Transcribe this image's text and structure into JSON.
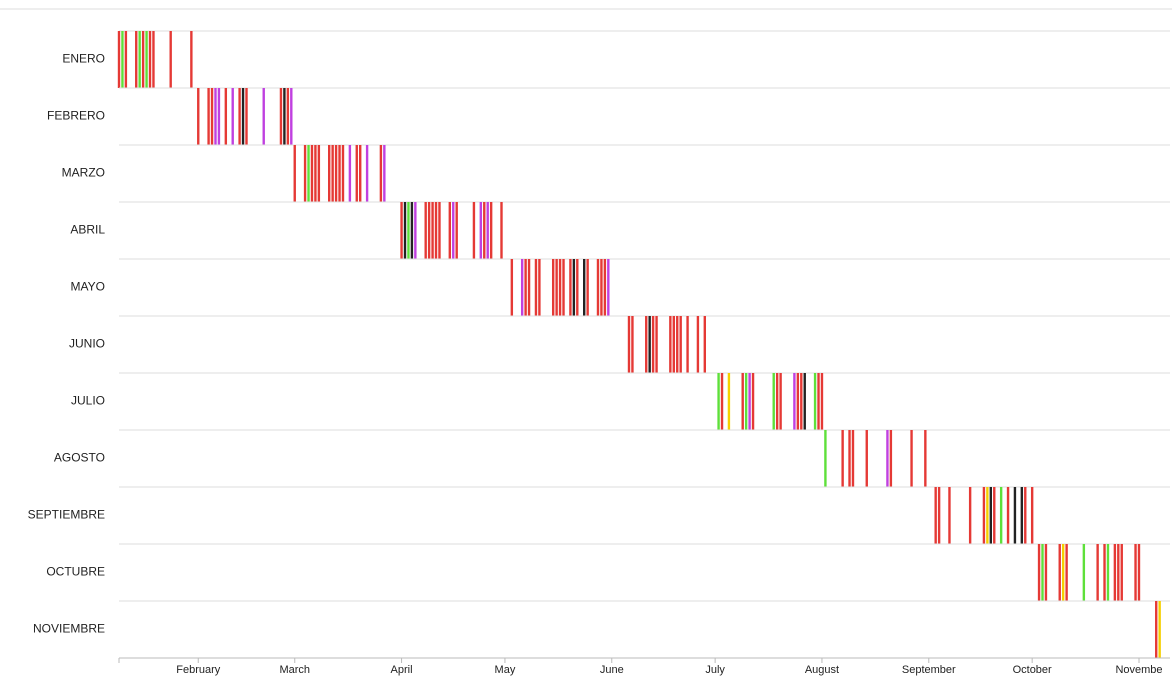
{
  "chart_data": {
    "type": "timeline",
    "xlim": [
      9,
      314
    ],
    "xticks": [
      {
        "value": 32,
        "label": "February"
      },
      {
        "value": 60,
        "label": "March"
      },
      {
        "value": 91,
        "label": "April"
      },
      {
        "value": 121,
        "label": "May"
      },
      {
        "value": 152,
        "label": "June"
      },
      {
        "value": 182,
        "label": "July"
      },
      {
        "value": 213,
        "label": "August"
      },
      {
        "value": 244,
        "label": "September"
      },
      {
        "value": 274,
        "label": "October"
      },
      {
        "value": 305,
        "label": "Novembe"
      }
    ],
    "rows": [
      {
        "name": "ENERO",
        "events": [
          9,
          10,
          11,
          14,
          15,
          16,
          17,
          18,
          19,
          24,
          30
        ],
        "colors": [
          "#e53935",
          "#5ee03a",
          "#e53935",
          "#e53935",
          "#5ee03a",
          "#e53935",
          "#5ee03a",
          "#e53935",
          "#e53935",
          "#e53935",
          "#e53935"
        ]
      },
      {
        "name": "FEBRERO",
        "events": [
          32,
          35,
          36,
          37,
          38,
          40,
          42,
          44,
          45,
          46,
          51,
          56,
          57,
          58,
          59
        ],
        "colors": [
          "#e53935",
          "#e53935",
          "#e53935",
          "#c040e0",
          "#c040e0",
          "#e53935",
          "#c040e0",
          "#e53935",
          "#222222",
          "#e53935",
          "#c040e0",
          "#e53935",
          "#222222",
          "#e53935",
          "#c040e0"
        ]
      },
      {
        "name": "MARZO",
        "events": [
          60,
          63,
          64,
          65,
          66,
          67,
          70,
          71,
          72,
          73,
          74,
          76,
          78,
          79,
          81,
          85,
          86
        ],
        "colors": [
          "#e53935",
          "#e53935",
          "#5ee03a",
          "#e53935",
          "#e53935",
          "#e53935",
          "#e53935",
          "#e53935",
          "#e53935",
          "#e53935",
          "#e53935",
          "#c040e0",
          "#e53935",
          "#e53935",
          "#c040e0",
          "#e53935",
          "#c040e0"
        ]
      },
      {
        "name": "ABRIL",
        "events": [
          91,
          92,
          93,
          94,
          95,
          98,
          99,
          100,
          101,
          102,
          105,
          106,
          107,
          112,
          114,
          115,
          116,
          117,
          120
        ],
        "colors": [
          "#e53935",
          "#222222",
          "#5ee03a",
          "#222222",
          "#c040e0",
          "#e53935",
          "#e53935",
          "#e53935",
          "#e53935",
          "#e53935",
          "#e53935",
          "#c040e0",
          "#e53935",
          "#e53935",
          "#c040e0",
          "#e53935",
          "#c040e0",
          "#e53935",
          "#e53935"
        ]
      },
      {
        "name": "MAYO",
        "events": [
          123,
          126,
          127,
          128,
          130,
          131,
          135,
          136,
          137,
          138,
          140,
          141,
          142,
          144,
          145,
          148,
          149,
          150,
          151
        ],
        "colors": [
          "#e53935",
          "#c040e0",
          "#e53935",
          "#e53935",
          "#e53935",
          "#e53935",
          "#e53935",
          "#e53935",
          "#e53935",
          "#e53935",
          "#e53935",
          "#222222",
          "#e53935",
          "#222222",
          "#e53935",
          "#e53935",
          "#e53935",
          "#e53935",
          "#c040e0"
        ]
      },
      {
        "name": "JUNIO",
        "events": [
          157,
          158,
          162,
          163,
          164,
          165,
          169,
          170,
          171,
          172,
          174,
          177,
          179
        ],
        "colors": [
          "#e53935",
          "#e53935",
          "#e53935",
          "#222222",
          "#e53935",
          "#e53935",
          "#e53935",
          "#e53935",
          "#e53935",
          "#e53935",
          "#e53935",
          "#e53935",
          "#e53935"
        ]
      },
      {
        "name": "JULIO",
        "events": [
          183,
          184,
          186,
          190,
          191,
          192,
          193,
          199,
          200,
          201,
          205,
          206,
          207,
          208,
          211,
          212,
          213
        ],
        "colors": [
          "#5ee03a",
          "#e53935",
          "#f5d000",
          "#e53935",
          "#5ee03a",
          "#c040e0",
          "#e53935",
          "#5ee03a",
          "#e53935",
          "#e53935",
          "#c040e0",
          "#e53935",
          "#e53935",
          "#222222",
          "#5ee03a",
          "#e53935",
          "#e53935"
        ]
      },
      {
        "name": "AGOSTO",
        "events": [
          214,
          219,
          221,
          222,
          226,
          232,
          233,
          239,
          243
        ],
        "colors": [
          "#5ee03a",
          "#e53935",
          "#e53935",
          "#e53935",
          "#e53935",
          "#c040e0",
          "#e53935",
          "#e53935",
          "#e53935"
        ]
      },
      {
        "name": "SEPTIEMBRE",
        "events": [
          246,
          247,
          250,
          256,
          260,
          261,
          262,
          263,
          265,
          267,
          269,
          271,
          272,
          274
        ],
        "colors": [
          "#e53935",
          "#e53935",
          "#e53935",
          "#e53935",
          "#e53935",
          "#f5d000",
          "#222222",
          "#e53935",
          "#5ee03a",
          "#e53935",
          "#222222",
          "#222222",
          "#e53935",
          "#e53935"
        ]
      },
      {
        "name": "OCTUBRE",
        "events": [
          276,
          277,
          278,
          282,
          283,
          284,
          289,
          293,
          295,
          296,
          298,
          299,
          300,
          304,
          305
        ],
        "colors": [
          "#e53935",
          "#5ee03a",
          "#e53935",
          "#e53935",
          "#f5d000",
          "#e53935",
          "#5ee03a",
          "#e53935",
          "#e53935",
          "#5ee03a",
          "#e53935",
          "#e53935",
          "#e53935",
          "#e53935",
          "#e53935"
        ]
      },
      {
        "name": "NOVIEMBRE",
        "events": [
          310,
          311
        ],
        "colors": [
          "#e53935",
          "#f5d000"
        ]
      }
    ]
  }
}
